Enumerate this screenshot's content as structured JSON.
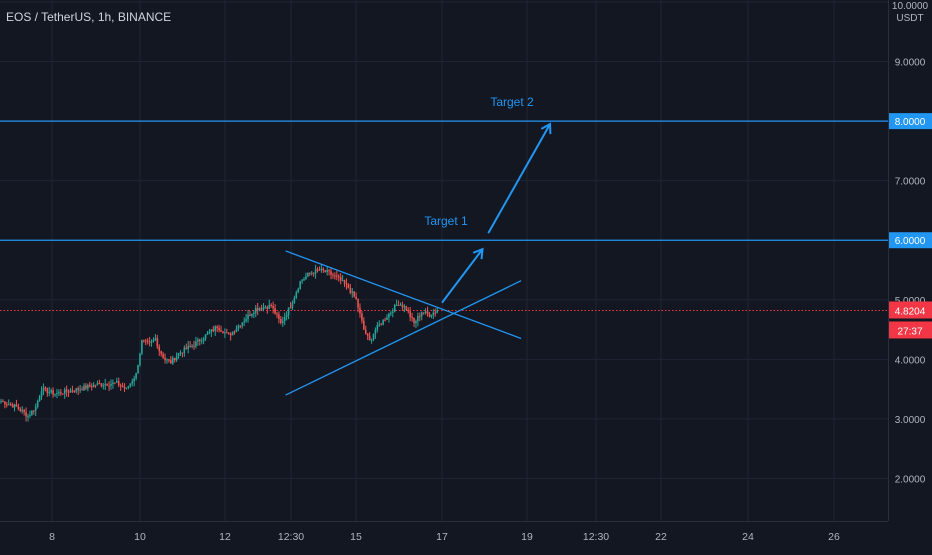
{
  "header": {
    "symbol_title": "EOS / TetherUS, 1h, BINANCE"
  },
  "price_axis": {
    "currency": "USDT",
    "current_price_label": "4.8204",
    "countdown_label": "27:37"
  },
  "colors": {
    "background": "#131722",
    "grid": "#1f2433",
    "up": "#26a69a",
    "down": "#ef5350",
    "drawing": "#2196f3",
    "level_line": "#2196f3",
    "axis_text": "#b2b5be",
    "current_price": "#f23645"
  },
  "chart_data": {
    "type": "candlestick",
    "ylim": [
      1.0,
      10.0
    ],
    "y_ticks": [
      "10.0000",
      "9.0000",
      "7.0000",
      "5.0000",
      "4.0000",
      "3.0000",
      "2.0000"
    ],
    "x_ticks": [
      "8",
      "10",
      "12",
      "12:30",
      "15",
      "17",
      "19",
      "12:30",
      "22",
      "24",
      "26"
    ],
    "horizontal_levels": [
      {
        "value": 6.0,
        "label": "6.0000"
      },
      {
        "value": 8.0,
        "label": "8.0000"
      }
    ],
    "current_price": 4.8204,
    "annotations": [
      {
        "text": "Target 1"
      },
      {
        "text": "Target 2"
      }
    ],
    "waypoints": [
      [
        0,
        3.3
      ],
      [
        8,
        3.2
      ],
      [
        14,
        3.05
      ],
      [
        18,
        3.2
      ],
      [
        21,
        3.5
      ],
      [
        28,
        3.42
      ],
      [
        40,
        3.5
      ],
      [
        50,
        3.58
      ],
      [
        60,
        3.6
      ],
      [
        65,
        3.5
      ],
      [
        70,
        3.75
      ],
      [
        73,
        4.3
      ],
      [
        77,
        4.25
      ],
      [
        80,
        4.35
      ],
      [
        82,
        4.15
      ],
      [
        85,
        4.0
      ],
      [
        88,
        3.95
      ],
      [
        92,
        4.1
      ],
      [
        100,
        4.25
      ],
      [
        108,
        4.45
      ],
      [
        112,
        4.55
      ],
      [
        118,
        4.4
      ],
      [
        124,
        4.6
      ],
      [
        132,
        4.85
      ],
      [
        140,
        4.9
      ],
      [
        145,
        4.6
      ],
      [
        150,
        4.9
      ],
      [
        155,
        5.3
      ],
      [
        160,
        5.45
      ],
      [
        165,
        5.5
      ],
      [
        170,
        5.45
      ],
      [
        175,
        5.35
      ],
      [
        180,
        5.2
      ],
      [
        184,
        5.0
      ],
      [
        188,
        4.5
      ],
      [
        191,
        4.3
      ],
      [
        194,
        4.5
      ],
      [
        198,
        4.65
      ],
      [
        202,
        4.8
      ],
      [
        206,
        4.95
      ],
      [
        210,
        4.85
      ],
      [
        214,
        4.6
      ],
      [
        218,
        4.8
      ],
      [
        222,
        4.75
      ],
      [
        226,
        4.82
      ]
    ],
    "trendlines": [
      {
        "from": [
          148,
          5.82
        ],
        "to": [
          270,
          4.35
        ]
      },
      {
        "from": [
          148,
          3.4
        ],
        "to": [
          270,
          5.32
        ]
      }
    ],
    "arrows": [
      {
        "points": [
          [
            229,
            4.95
          ],
          [
            250,
            5.85
          ]
        ]
      },
      {
        "points": [
          [
            253,
            6.12
          ],
          [
            285,
            7.95
          ]
        ]
      }
    ]
  }
}
